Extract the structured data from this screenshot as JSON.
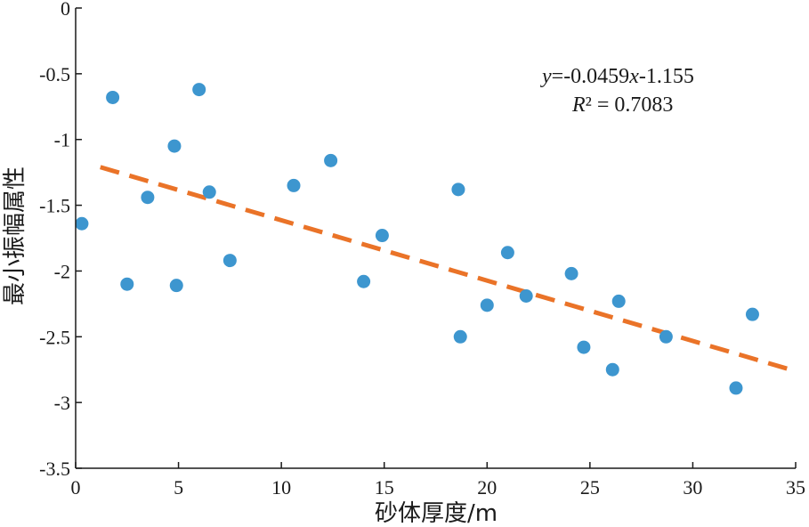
{
  "chart_data": {
    "type": "scatter",
    "xlabel": "砂体厚度/m",
    "ylabel": "最小振幅属性",
    "xlim": [
      0,
      35
    ],
    "ylim": [
      -3.5,
      0
    ],
    "xticks": [
      0,
      5,
      10,
      15,
      20,
      25,
      30,
      35
    ],
    "yticks": [
      0,
      -0.5,
      -1,
      -1.5,
      -2,
      -2.5,
      -3,
      -3.5
    ],
    "xtick_labels": [
      "0",
      "5",
      "10",
      "15",
      "20",
      "25",
      "30",
      "35"
    ],
    "ytick_labels": [
      "0",
      "-0.5",
      "-1",
      "-1.5",
      "-2",
      "-2.5",
      "-3",
      "-3.5"
    ],
    "grid": false,
    "point_color": "#3d96cf",
    "trend_color": "#ea7328",
    "series": [
      {
        "points": [
          [
            0.3,
            -1.64
          ],
          [
            1.8,
            -0.68
          ],
          [
            2.5,
            -2.1
          ],
          [
            3.5,
            -1.44
          ],
          [
            4.8,
            -1.05
          ],
          [
            4.9,
            -2.11
          ],
          [
            6.0,
            -0.62
          ],
          [
            6.5,
            -1.4
          ],
          [
            7.5,
            -1.92
          ],
          [
            10.6,
            -1.35
          ],
          [
            12.4,
            -1.16
          ],
          [
            14.0,
            -2.08
          ],
          [
            14.9,
            -1.73
          ],
          [
            18.6,
            -1.38
          ],
          [
            18.7,
            -2.5
          ],
          [
            20.0,
            -2.26
          ],
          [
            21.0,
            -1.86
          ],
          [
            21.9,
            -2.19
          ],
          [
            24.1,
            -2.02
          ],
          [
            24.7,
            -2.58
          ],
          [
            26.1,
            -2.75
          ],
          [
            26.4,
            -2.23
          ],
          [
            28.7,
            -2.5
          ],
          [
            32.1,
            -2.89
          ],
          [
            32.9,
            -2.33
          ]
        ]
      }
    ],
    "trendline": {
      "slope": -0.0459,
      "intercept": -1.155,
      "x_range": [
        1.2,
        34.8
      ],
      "style": "dashed"
    },
    "annotation": {
      "equation": {
        "y_var": "y",
        "eq_text": "=-0.0459",
        "x_var": "x",
        "tail_text": "-1.155"
      },
      "r2": {
        "r_var": "R",
        "r2_text": "² = 0.7083"
      }
    }
  }
}
